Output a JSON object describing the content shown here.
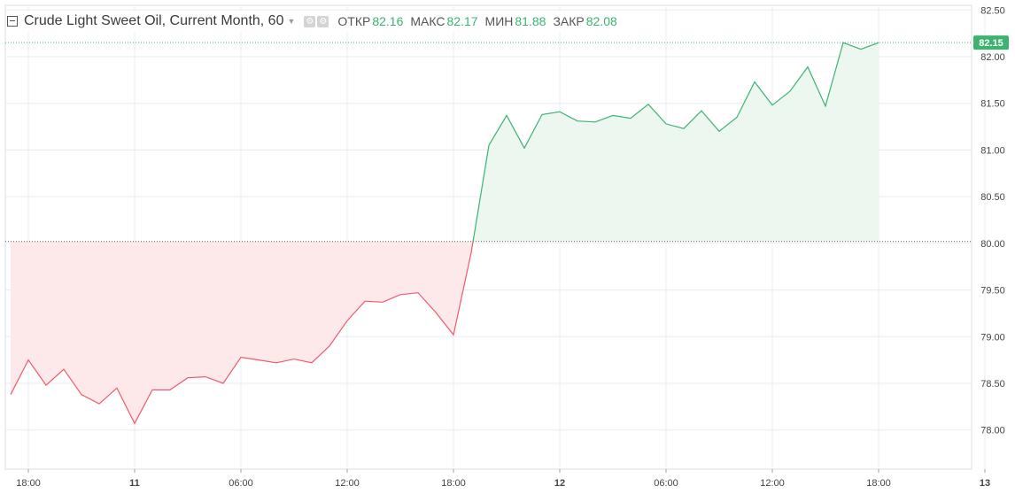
{
  "legend": {
    "title": "Crude Light Sweet Oil, Current Month, 60",
    "caret": "▼",
    "open_label": "ОТКР",
    "open_value": "82.16",
    "high_label": "МАКС",
    "high_value": "82.17",
    "low_label": "МИН",
    "low_value": "81.88",
    "close_label": "ЗАКР",
    "close_value": "82.08"
  },
  "colors": {
    "up_line": "#3cb371",
    "up_fill": "#ebf7ef",
    "down_line": "#f05a6a",
    "down_fill": "#fde9ea",
    "grid": "#e8ebef",
    "axis_text": "#444",
    "price_badge": "#3cb371"
  },
  "chart_data": {
    "type": "area",
    "baseline": 80.02,
    "last_price_label": "82.15",
    "last_price": 82.15,
    "ylim": [
      77.58,
      82.55
    ],
    "y_ticks": [
      78.0,
      78.5,
      79.0,
      79.5,
      80.0,
      80.5,
      81.0,
      81.5,
      82.0,
      82.5
    ],
    "y_tick_labels": [
      "78.00",
      "78.50",
      "79.00",
      "79.50",
      "80.00",
      "80.50",
      "81.00",
      "81.50",
      "82.00",
      "82.50"
    ],
    "x_ticks": [
      {
        "label": "18:00",
        "bold": false,
        "i": 1
      },
      {
        "label": "11",
        "bold": true,
        "i": 7
      },
      {
        "label": "06:00",
        "bold": false,
        "i": 13
      },
      {
        "label": "12:00",
        "bold": false,
        "i": 19
      },
      {
        "label": "18:00",
        "bold": false,
        "i": 25
      },
      {
        "label": "12",
        "bold": true,
        "i": 31
      },
      {
        "label": "06:00",
        "bold": false,
        "i": 37
      },
      {
        "label": "12:00",
        "bold": false,
        "i": 43
      },
      {
        "label": "18:00",
        "bold": false,
        "i": 49
      },
      {
        "label": "13",
        "bold": true,
        "i": 55
      }
    ],
    "values": [
      78.38,
      78.75,
      78.48,
      78.65,
      78.38,
      78.28,
      78.45,
      78.07,
      78.43,
      78.43,
      78.56,
      78.57,
      78.5,
      78.78,
      78.75,
      78.72,
      78.76,
      78.72,
      78.9,
      79.17,
      79.38,
      79.37,
      79.45,
      79.47,
      79.26,
      79.02,
      79.9,
      81.05,
      81.37,
      81.02,
      81.38,
      81.41,
      81.31,
      81.3,
      81.37,
      81.34,
      81.49,
      81.28,
      81.23,
      81.42,
      81.2,
      81.35,
      81.73,
      81.48,
      81.63,
      81.89,
      81.47,
      82.15,
      82.08,
      82.15
    ]
  }
}
